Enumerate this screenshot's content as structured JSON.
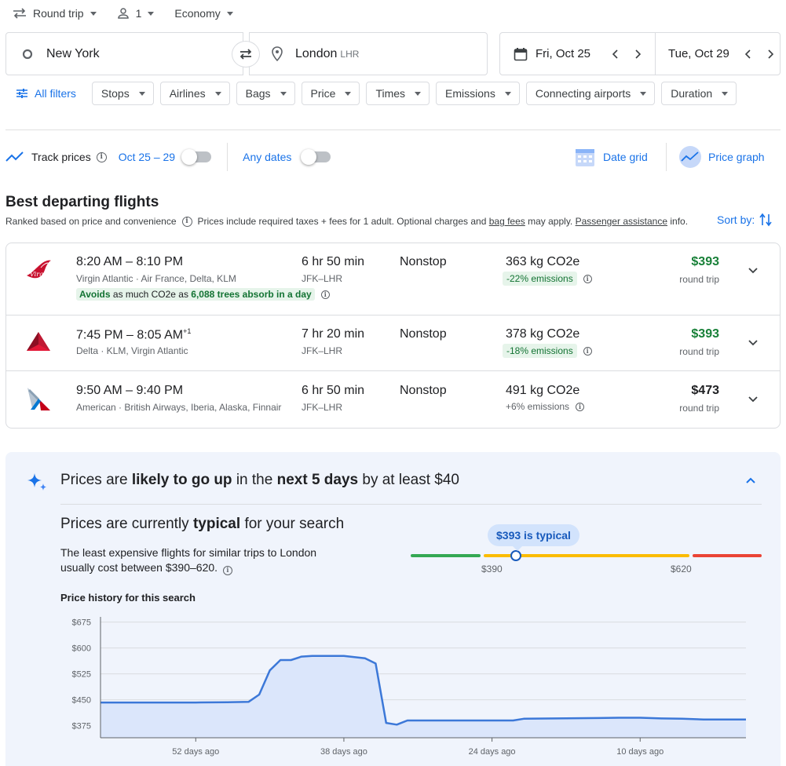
{
  "trip": {
    "type_label": "Round trip",
    "passengers": "1",
    "cabin": "Economy"
  },
  "search": {
    "origin": "New York",
    "destination": "London",
    "destination_code": "LHR",
    "depart_date": "Fri, Oct 25",
    "return_date": "Tue, Oct 29"
  },
  "filters": {
    "all_filters_label": "All filters",
    "chips": [
      "Stops",
      "Airlines",
      "Bags",
      "Price",
      "Times",
      "Emissions",
      "Connecting airports",
      "Duration"
    ]
  },
  "tracking": {
    "track_label": "Track prices",
    "date_range": "Oct 25 – 29",
    "any_dates_label": "Any dates",
    "date_grid_label": "Date grid",
    "price_graph_label": "Price graph"
  },
  "results": {
    "heading": "Best departing flights",
    "ranked_text": "Ranked based on price and convenience",
    "prices_note_a": "Prices include required taxes + fees for 1 adult. Optional charges and",
    "bag_fees_link": "bag fees",
    "prices_note_b": "may apply.",
    "passenger_link": "Passenger assistance",
    "prices_note_c": "info.",
    "sort_label": "Sort by:",
    "flights": [
      {
        "time": "8:20 AM – 8:10 PM",
        "time_sup": "",
        "airlines": "Virgin Atlantic · Air France, Delta, KLM",
        "duration": "6 hr 50 min",
        "route": "JFK–LHR",
        "stops": "Nonstop",
        "co2": "363 kg CO2e",
        "emissions": "-22% emissions",
        "price": "$393",
        "price_note": "round trip",
        "avoid_pre": "Avoids",
        "avoid_mid": "as much CO2e as",
        "avoid_bold": "6,088 trees absorb in a day"
      },
      {
        "time": "7:45 PM – 8:05 AM",
        "time_sup": "+1",
        "airlines": "Delta · KLM, Virgin Atlantic",
        "duration": "7 hr 20 min",
        "route": "JFK–LHR",
        "stops": "Nonstop",
        "co2": "378 kg CO2e",
        "emissions": "-18% emissions",
        "price": "$393",
        "price_note": "round trip"
      },
      {
        "time": "9:50 AM – 9:40 PM",
        "time_sup": "",
        "airlines": "American · British Airways, Iberia, Alaska, Finnair",
        "duration": "6 hr 50 min",
        "route": "JFK–LHR",
        "stops": "Nonstop",
        "co2": "491 kg CO2e",
        "emissions": "+6% emissions",
        "price": "$473",
        "price_note": "round trip"
      }
    ]
  },
  "insights": {
    "prediction_a": "Prices are",
    "prediction_b": "likely to go up",
    "prediction_c": "in the",
    "prediction_d": "next 5 days",
    "prediction_e": "by at least $40",
    "typical_a": "Prices are currently",
    "typical_b": "typical",
    "typical_c": "for your search",
    "typical_desc": "The least expensive flights for similar trips to London usually cost between $390–620.",
    "typical_pill": "$393 is typical",
    "range_low": "$390",
    "range_high": "$620",
    "history_title": "Price history for this search"
  },
  "colors": {
    "accent": "#1a73e8",
    "price_green": "#188038",
    "range_green": "#34a853",
    "range_yellow": "#fbbc04",
    "range_red": "#ea4335"
  },
  "chart_data": {
    "type": "area",
    "title": "Price history for this search",
    "xlabel": "",
    "ylabel": "",
    "ylim": [
      340,
      690
    ],
    "y_ticks": [
      375,
      450,
      525,
      600,
      675
    ],
    "y_tick_labels": [
      "$375",
      "$450",
      "$525",
      "$600",
      "$675"
    ],
    "x_ticks": [
      52,
      38,
      24,
      10
    ],
    "x_tick_labels": [
      "52 days ago",
      "38 days ago",
      "24 days ago",
      "10 days ago"
    ],
    "x_range_days_ago": [
      61,
      0
    ],
    "grid": true,
    "series": [
      {
        "x_days_ago": [
          61,
          58,
          55,
          52,
          49,
          47,
          46,
          45,
          44,
          43,
          42,
          41,
          40,
          38,
          36,
          35,
          34,
          33,
          32,
          31,
          30,
          28,
          24,
          22,
          21,
          18,
          14,
          12,
          10,
          8,
          6,
          4,
          2,
          0
        ],
        "values": [
          442,
          442,
          442,
          442,
          443,
          444,
          465,
          535,
          565,
          565,
          575,
          577,
          577,
          577,
          570,
          555,
          383,
          378,
          390,
          390,
          390,
          390,
          390,
          390,
          395,
          396,
          397,
          398,
          398,
          396,
          395,
          393,
          393,
          393
        ]
      }
    ]
  }
}
